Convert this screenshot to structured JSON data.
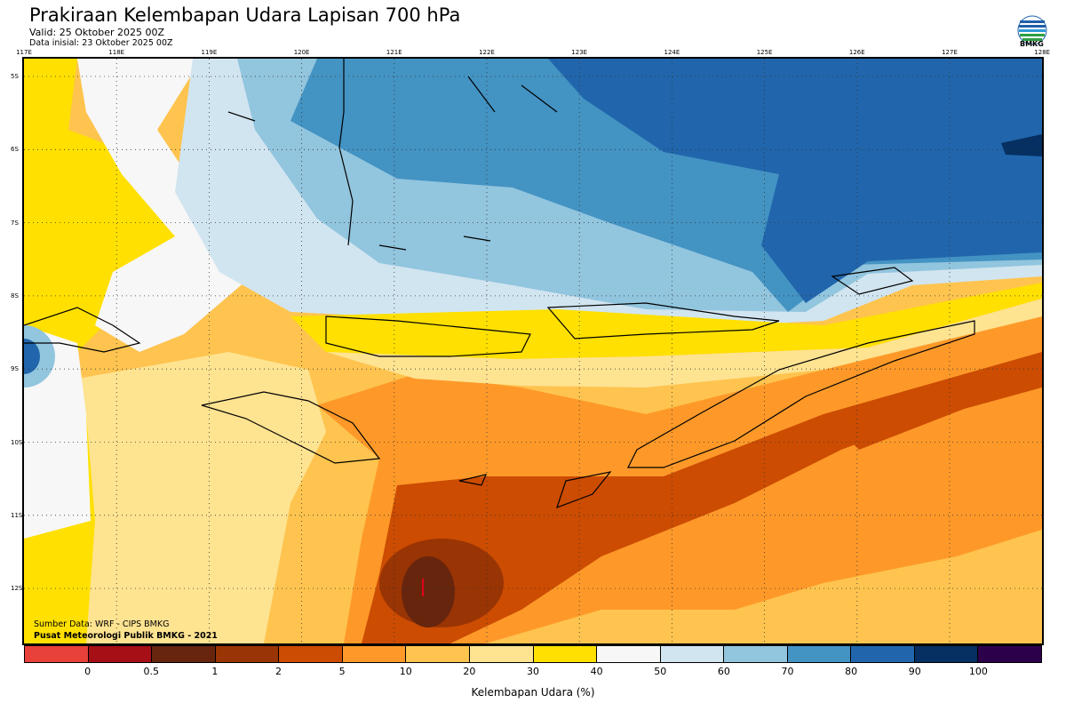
{
  "header": {
    "title": "Prakiraan Kelembapan Udara Lapisan 700 hPa",
    "valid": "Valid: 25 Oktober 2025 00Z",
    "init": "Data inisial: 23 Oktober 2025 00Z",
    "logo_text": "BMKG"
  },
  "axes": {
    "lon_labels": [
      "117E",
      "118E",
      "119E",
      "120E",
      "121E",
      "122E",
      "123E",
      "124E",
      "125E",
      "126E",
      "127E",
      "128E"
    ],
    "lat_labels": [
      "5S",
      "6S",
      "7S",
      "8S",
      "9S",
      "10S",
      "11S",
      "12S"
    ]
  },
  "footer": {
    "source": "Sumber Data: WRF - CIPS BMKG",
    "credit": "Pusat Meteorologi Publik BMKG - 2021"
  },
  "colorbar": {
    "label": "Kelembapan Udara (%)",
    "colors": [
      "#e8413a",
      "#a50f15",
      "#67250e",
      "#993404",
      "#cc4c02",
      "#fe9929",
      "#fec44f",
      "#fee391",
      "#ffe000",
      "#f7f7f7",
      "#d1e5f0",
      "#92c5de",
      "#4393c3",
      "#2166ac",
      "#053061",
      "#2d004b"
    ],
    "ticks": [
      "0",
      "0.5",
      "1",
      "2",
      "5",
      "10",
      "20",
      "30",
      "40",
      "50",
      "60",
      "70",
      "80",
      "90",
      "100"
    ]
  }
}
